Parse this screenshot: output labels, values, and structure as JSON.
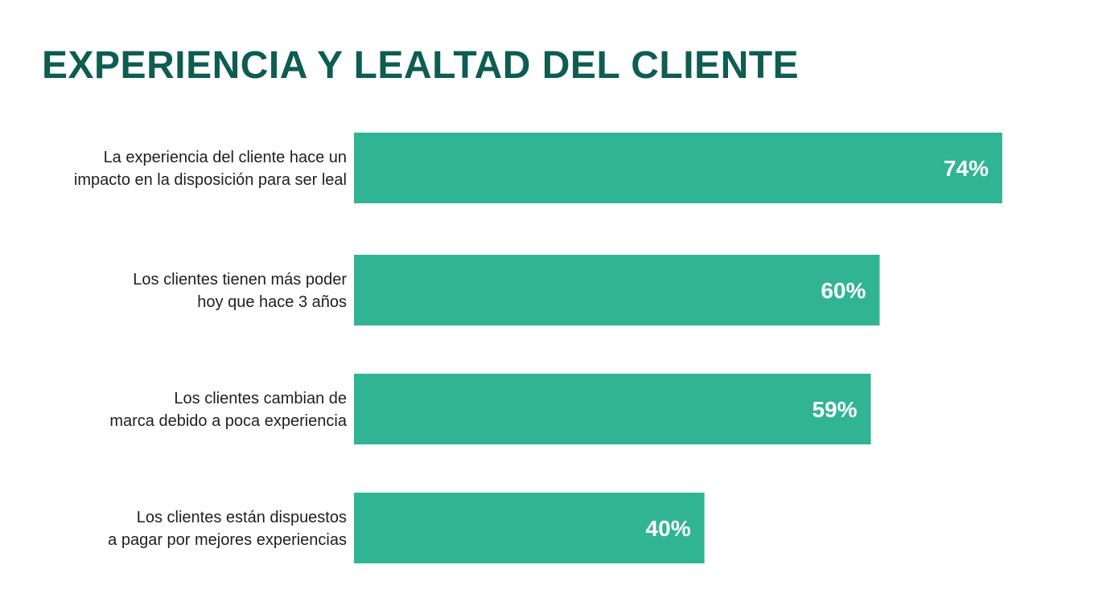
{
  "colors": {
    "title": "#0e5c52",
    "bar": "#31b494",
    "label": "#1f1f1f",
    "value": "#ffffff"
  },
  "chart_data": {
    "type": "bar",
    "orientation": "horizontal",
    "title": "EXPERIENCIA Y LEALTAD DEL CLIENTE",
    "xlim": [
      0,
      100
    ],
    "grid": false,
    "categories": [
      [
        "La experiencia del cliente hace un",
        "impacto en la disposición para ser leal"
      ],
      [
        "Los clientes tienen más poder",
        "hoy que hace 3 años"
      ],
      [
        "Los clientes cambian de",
        "marca debido a poca experiencia"
      ],
      [
        "Los clientes están dispuestos",
        "a pagar por mejores experiencias"
      ]
    ],
    "values": [
      74,
      60,
      59,
      40
    ],
    "value_labels": [
      "74%",
      "60%",
      "59%",
      "40%"
    ]
  }
}
